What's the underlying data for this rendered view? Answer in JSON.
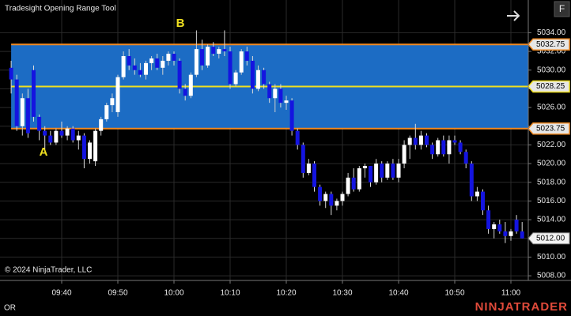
{
  "chart_data": {
    "type": "candlestick",
    "title": "Tradesight Opening Range Tool",
    "copyright": "© 2024 NinjaTrader, LLC",
    "indicator_label": "OR",
    "brand": "NINJATRADER",
    "button": "F",
    "annotations": [
      {
        "text": "A"
      },
      {
        "text": "B"
      }
    ],
    "x": [
      "09:31",
      "09:32",
      "09:33",
      "09:34",
      "09:35",
      "09:36",
      "09:37",
      "09:38",
      "09:39",
      "09:40",
      "09:41",
      "09:42",
      "09:43",
      "09:44",
      "09:45",
      "09:46",
      "09:47",
      "09:48",
      "09:49",
      "09:50",
      "09:51",
      "09:52",
      "09:53",
      "09:54",
      "09:55",
      "09:56",
      "09:57",
      "09:58",
      "09:59",
      "10:00",
      "10:01",
      "10:02",
      "10:03",
      "10:04",
      "10:05",
      "10:06",
      "10:07",
      "10:08",
      "10:09",
      "10:10",
      "10:11",
      "10:12",
      "10:13",
      "10:14",
      "10:15",
      "10:16",
      "10:17",
      "10:18",
      "10:19",
      "10:20",
      "10:21",
      "10:22",
      "10:23",
      "10:24",
      "10:25",
      "10:26",
      "10:27",
      "10:28",
      "10:29",
      "10:30",
      "10:31",
      "10:32",
      "10:33",
      "10:34",
      "10:35",
      "10:36",
      "10:37",
      "10:38",
      "10:39",
      "10:40",
      "10:41",
      "10:42",
      "10:43",
      "10:44",
      "10:45",
      "10:46",
      "10:47",
      "10:48",
      "10:49",
      "10:50",
      "10:51",
      "10:52",
      "10:53",
      "10:54",
      "10:55",
      "10:56",
      "10:57",
      "10:58",
      "10:59",
      "11:00",
      "11:01",
      "11:02"
    ],
    "open": [
      5030.25,
      5029,
      5024,
      5027,
      5030,
      5025,
      5023.5,
      5023,
      5022.25,
      5023.5,
      5023,
      5023.75,
      5022.5,
      5023,
      5020.5,
      5020.25,
      5023.5,
      5024.75,
      5026.25,
      5025.5,
      5029.25,
      5031.5,
      5030.5,
      5030,
      5029.5,
      5030.75,
      5031.25,
      5030.25,
      5031,
      5031.75,
      5031,
      5028,
      5027.25,
      5029.5,
      5032.25,
      5030.5,
      5032.5,
      5031.75,
      5032.25,
      5032,
      5028.5,
      5029.75,
      5032,
      5031,
      5028,
      5030,
      5028.5,
      5027,
      5028,
      5026.5,
      5026.75,
      5023.5,
      5022,
      5019,
      5020,
      5017.5,
      5016,
      5016.75,
      5015.5,
      5016,
      5016.75,
      5018.5,
      5017.25,
      5019.5,
      5019.75,
      5018,
      5020,
      5018.5,
      5020,
      5018.5,
      5020,
      5022,
      5022.75,
      5022,
      5023,
      5022,
      5021,
      5022.5,
      5021,
      5022.5,
      5022.25,
      5021.25,
      5020,
      5016.5,
      5017,
      5015,
      5013,
      5013.5,
      5012.75,
      5012.25,
      5014,
      5012.75
    ],
    "high": [
      5031,
      5029.5,
      5027.5,
      5028,
      5030.5,
      5025.25,
      5024,
      5023.5,
      5023.75,
      5024.5,
      5024,
      5024,
      5023.5,
      5023.25,
      5022.5,
      5023.75,
      5025,
      5026.5,
      5027.5,
      5029.5,
      5032,
      5032.25,
      5031.25,
      5030.75,
      5031,
      5031.5,
      5031.75,
      5031.5,
      5032,
      5032,
      5031.25,
      5028.5,
      5029.75,
      5034.25,
      5033.25,
      5032.75,
      5033,
      5032.5,
      5034.25,
      5032.5,
      5030,
      5032.25,
      5032.5,
      5031.5,
      5030.5,
      5030.25,
      5028.75,
      5028.5,
      5028.5,
      5027.25,
      5027,
      5023.75,
      5022.25,
      5020.5,
      5020.25,
      5017.75,
      5017,
      5017,
      5016.25,
      5017,
      5019,
      5019.5,
      5019.75,
      5020,
      5019.75,
      5020.5,
      5020.25,
      5020.25,
      5020.5,
      5020.5,
      5022.5,
      5023,
      5024.25,
      5023.5,
      5023.25,
      5022.25,
      5022.75,
      5023,
      5023,
      5023,
      5022.5,
      5021.5,
      5020.25,
      5017.5,
      5017.25,
      5015.5,
      5013.75,
      5014,
      5013.75,
      5013,
      5014.5,
      5013.75
    ],
    "low": [
      5027.5,
      5023.5,
      5023,
      5022.75,
      5024.5,
      5022.5,
      5021.5,
      5022,
      5022,
      5022.75,
      5022.5,
      5022.25,
      5021.5,
      5019.5,
      5020,
      5019.75,
      5023,
      5024.5,
      5025.5,
      5025,
      5029,
      5030,
      5029.5,
      5029.25,
      5029,
      5030,
      5030,
      5029.5,
      5030.5,
      5030.5,
      5027.5,
      5026.75,
      5027,
      5029.25,
      5030,
      5030.25,
      5031.5,
      5031.25,
      5031.5,
      5028,
      5028.25,
      5029.5,
      5030.5,
      5027.5,
      5027.75,
      5028,
      5026.5,
      5025.5,
      5026,
      5025.75,
      5023,
      5021.5,
      5018.5,
      5018.75,
      5017,
      5015.5,
      5015.25,
      5014.5,
      5015,
      5015.5,
      5016.5,
      5017,
      5017,
      5018.5,
      5017.5,
      5017.75,
      5018,
      5018.25,
      5018.25,
      5018,
      5019.5,
      5020.5,
      5021.5,
      5021.5,
      5021.75,
      5020.5,
      5020.75,
      5020.75,
      5020,
      5022,
      5021,
      5019.5,
      5016,
      5016,
      5014.5,
      5012.5,
      5012,
      5012.5,
      5011.5,
      5011.75,
      5012.5,
      5012
    ],
    "close": [
      5029,
      5024,
      5027,
      5023.25,
      5025,
      5023.5,
      5023,
      5022.25,
      5023.5,
      5023,
      5023.75,
      5022.5,
      5023,
      5020.5,
      5022.25,
      5023.5,
      5024.75,
      5026.25,
      5027,
      5029.25,
      5031.5,
      5030.5,
      5030,
      5029.5,
      5030.75,
      5031.25,
      5030.25,
      5031,
      5031.75,
      5031,
      5028,
      5027.25,
      5029.5,
      5032.25,
      5030.5,
      5032.5,
      5031.75,
      5032.25,
      5032,
      5028.5,
      5029.75,
      5032,
      5031,
      5028,
      5030,
      5028.5,
      5027,
      5028,
      5026.5,
      5026.75,
      5023.5,
      5022,
      5019,
      5020,
      5017.5,
      5016,
      5016.75,
      5015.5,
      5016,
      5016.75,
      5018.5,
      5017.25,
      5019.5,
      5019.75,
      5018,
      5020,
      5018.5,
      5020,
      5018.5,
      5020,
      5022,
      5022.75,
      5022,
      5023,
      5022,
      5021,
      5022.5,
      5021,
      5022.5,
      5022.25,
      5021.25,
      5020,
      5016.5,
      5017,
      5015,
      5013,
      5013.5,
      5012.75,
      5012.25,
      5012.75,
      5012.75,
      5012
    ],
    "up_color": "#ffffff",
    "down_color": "#1414e0",
    "range_fill": "#1c6cc4",
    "levels": [
      5032.75,
      5028.25,
      5023.75
    ],
    "level_colors": [
      "#f08a24",
      "#f0e020",
      "#f08a24"
    ],
    "last_price": {
      "value": 5012,
      "label": "5012.00"
    },
    "ylim": [
      5007.5,
      5037.5
    ],
    "yticks": [
      {
        "value": 5008,
        "label": "5008.00"
      },
      {
        "value": 5010,
        "label": "5010.00"
      },
      {
        "value": 5012,
        "label": "5012.00"
      },
      {
        "value": 5014,
        "label": "5014.00"
      },
      {
        "value": 5016,
        "label": "5016.00"
      },
      {
        "value": 5018,
        "label": "5018.00"
      },
      {
        "value": 5020,
        "label": "5020.00"
      },
      {
        "value": 5022,
        "label": "5022.00"
      },
      {
        "value": 5024,
        "label": "5024.00"
      },
      {
        "value": 5026,
        "label": "5026.00"
      },
      {
        "value": 5028,
        "label": "5028.00"
      },
      {
        "value": 5030,
        "label": "5030.00"
      },
      {
        "value": 5032,
        "label": "5032.00"
      },
      {
        "value": 5034,
        "label": "5034.00"
      }
    ],
    "xticks": [
      "09:40",
      "09:50",
      "10:00",
      "10:10",
      "10:20",
      "10:30",
      "10:40",
      "10:50",
      "11:00"
    ],
    "grid": true
  }
}
